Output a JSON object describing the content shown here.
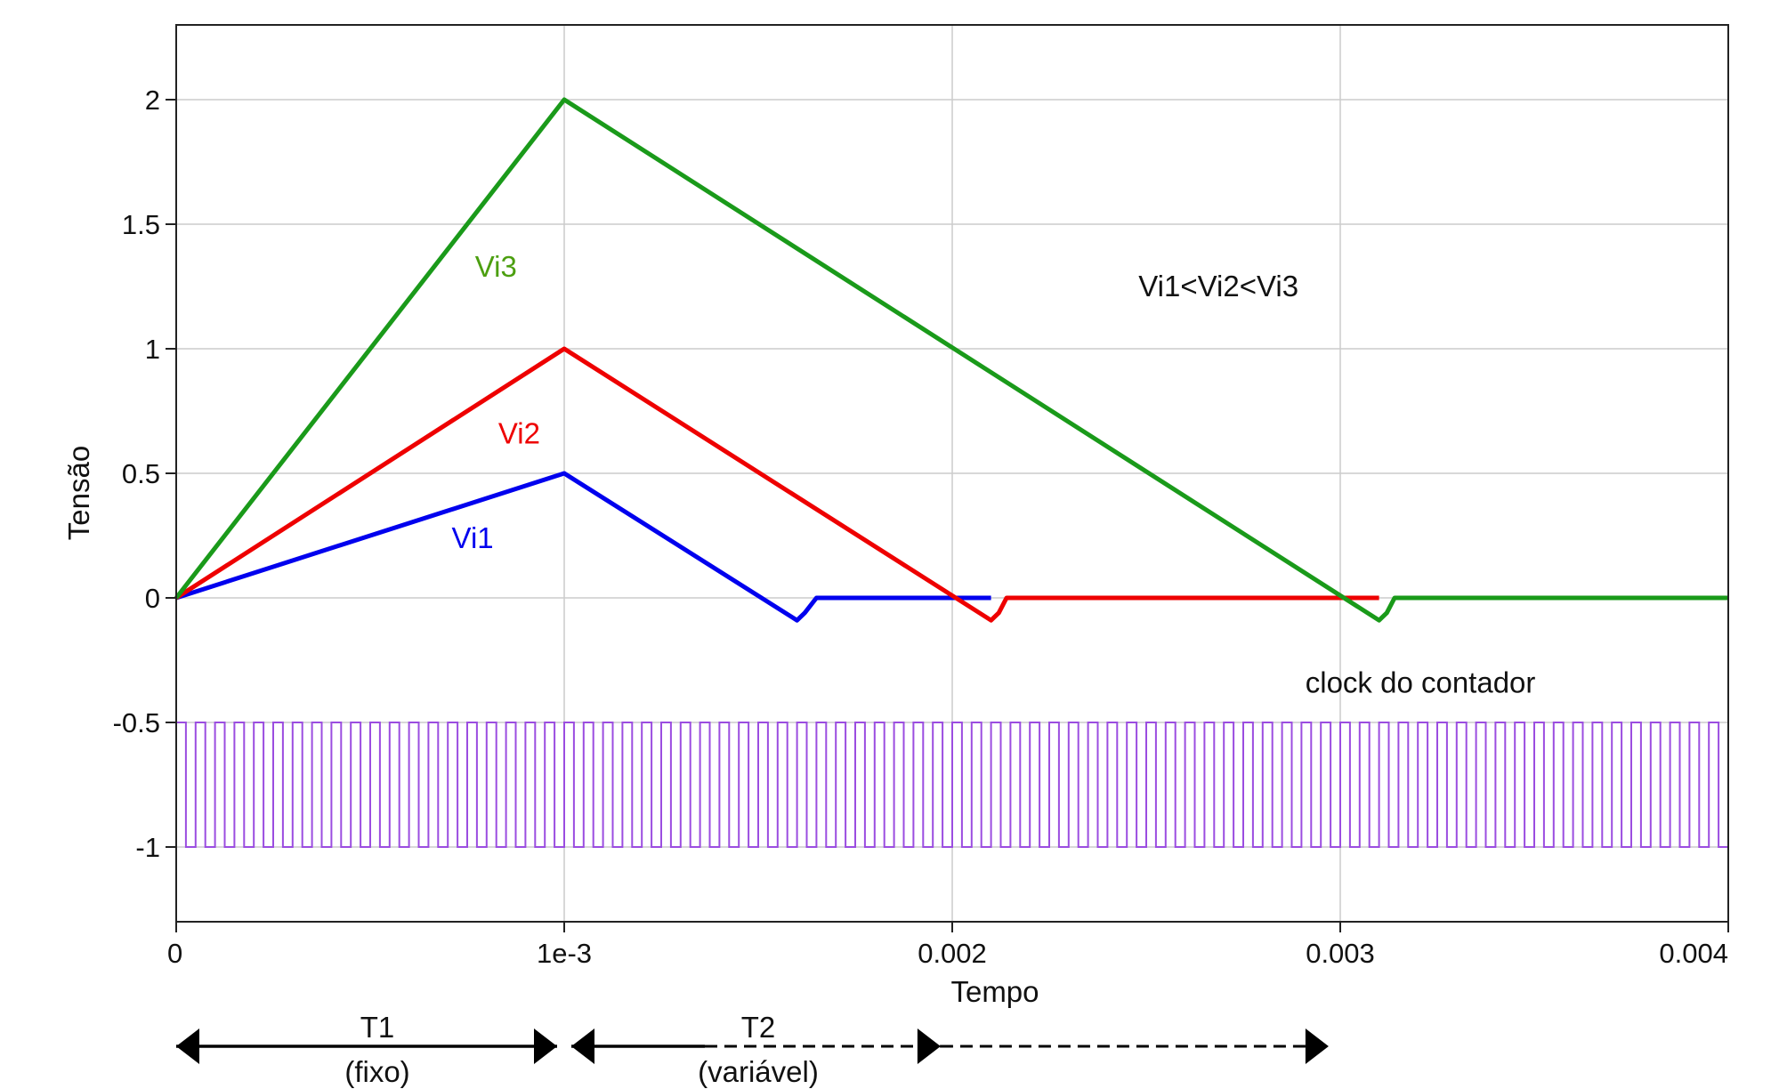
{
  "chart_data": {
    "type": "line",
    "xlabel": "Tempo",
    "ylabel": "Tensão",
    "xlim": [
      0,
      0.004
    ],
    "ylim": [
      -1.3,
      2.3
    ],
    "x_ticks": [
      0,
      0.001,
      0.002,
      0.003,
      0.004
    ],
    "x_tick_labels": [
      "0",
      "1e-3",
      "0.002",
      "0.003",
      "0.004"
    ],
    "y_ticks": [
      -1,
      -0.5,
      0,
      0.5,
      1,
      1.5,
      2
    ],
    "y_tick_labels": [
      "-1",
      "-0.5",
      "0",
      "0.5",
      "1",
      "1.5",
      "2"
    ],
    "grid": true,
    "series": [
      {
        "name": "Vi1",
        "color": "#0000ee",
        "x": [
          0,
          0.001,
          0.0016,
          0.00162,
          0.00165,
          0.0021
        ],
        "y": [
          0,
          0.5,
          -0.09,
          -0.06,
          0,
          0
        ]
      },
      {
        "name": "Vi2",
        "color": "#ee0000",
        "x": [
          0,
          0.001,
          0.0021,
          0.00212,
          0.00214,
          0.0031
        ],
        "y": [
          0,
          1,
          -0.09,
          -0.06,
          0,
          0
        ]
      },
      {
        "name": "Vi3",
        "color": "#1a9a1a",
        "x": [
          0,
          0.001,
          0.0031,
          0.00312,
          0.00314,
          0.004
        ],
        "y": [
          0,
          2,
          -0.09,
          -0.06,
          0,
          0
        ]
      },
      {
        "name": "clock do contador",
        "color": "#9b4de0",
        "type": "square_wave",
        "x_start": 0,
        "x_end": 0.004,
        "cycles": 80,
        "high": -0.5,
        "low": -1
      }
    ],
    "annotations": [
      {
        "text": "Vi3",
        "color": "#4c9f10",
        "x": 0.00077,
        "y": 1.29
      },
      {
        "text": "Vi2",
        "color": "#ee0000",
        "x": 0.00083,
        "y": 0.62
      },
      {
        "text": "Vi1",
        "color": "#0000ee",
        "x": 0.00071,
        "y": 0.2
      },
      {
        "text": "Vi1<Vi2<Vi3",
        "color": "#111111",
        "x": 0.00248,
        "y": 1.21
      },
      {
        "text": "clock do contador",
        "color": "#111111",
        "x": 0.00291,
        "y": -0.38
      }
    ],
    "intervals": [
      {
        "label": "T1",
        "sublabel": "(fixo)",
        "x_start": 0,
        "x_end": 0.001,
        "style": "solid"
      },
      {
        "label": "T2",
        "sublabel": "(variável)",
        "x_start": 0.001,
        "x_end": 0.00197,
        "x_extend": 0.00297,
        "style": "dashed"
      }
    ]
  }
}
